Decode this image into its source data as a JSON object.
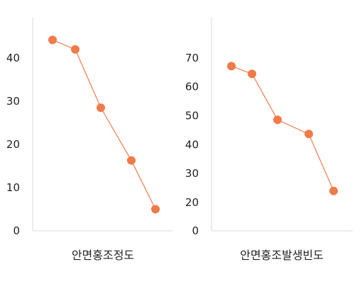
{
  "chart_data": [
    {
      "type": "line",
      "title": "",
      "xlabel": "안면홍조정도",
      "ylabel": "",
      "x": [
        1,
        2,
        3,
        4,
        5
      ],
      "series": [
        {
          "values": [
            44.2,
            42.0,
            28.5,
            16.3,
            5.0
          ]
        }
      ],
      "ylim": [
        0,
        48
      ],
      "yticks": [
        "0",
        "10",
        "20",
        "30",
        "40"
      ],
      "grid": false,
      "color": "#F07B4A",
      "axis_color": "#D9D9D9"
    },
    {
      "type": "line",
      "title": "",
      "xlabel": "안면홍조발생빈도",
      "ylabel": "",
      "x": [
        1,
        2,
        3,
        4,
        5
      ],
      "series": [
        {
          "values": [
            67.2,
            64.5,
            48.6,
            43.7,
            24.0
          ]
        }
      ],
      "ylim": [
        0,
        75
      ],
      "yticks": [
        "0",
        "20",
        "30",
        "40",
        "50",
        "60",
        "70"
      ],
      "grid": false,
      "color": "#F07B4A",
      "axis_color": "#D9D9D9"
    }
  ]
}
